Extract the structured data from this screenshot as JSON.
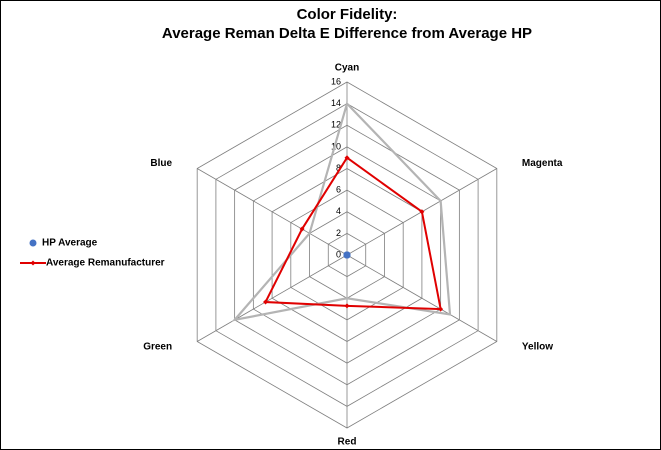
{
  "chart_data": {
    "type": "radar",
    "title": [
      "Color Fidelity:",
      "Average Reman Delta E Difference from Average HP"
    ],
    "categories": [
      "Cyan",
      "Magenta",
      "Yellow",
      "Red",
      "Green",
      "Blue"
    ],
    "ylim": [
      0,
      16
    ],
    "yticks": [
      0,
      2,
      4,
      6,
      8,
      10,
      12,
      14,
      16
    ],
    "grid": true,
    "legend": "left",
    "series": [
      {
        "name": "HP Average",
        "color": "#4472c4",
        "values": [
          0,
          0,
          0,
          0,
          0,
          0
        ]
      },
      {
        "name": "Average Remanufacturer",
        "color": "#e00000",
        "values": [
          9,
          8,
          10,
          4.7,
          8.7,
          4.8
        ]
      },
      {
        "color": "#b4b4b4",
        "values": [
          14,
          10,
          11,
          4,
          12,
          4
        ]
      }
    ]
  }
}
